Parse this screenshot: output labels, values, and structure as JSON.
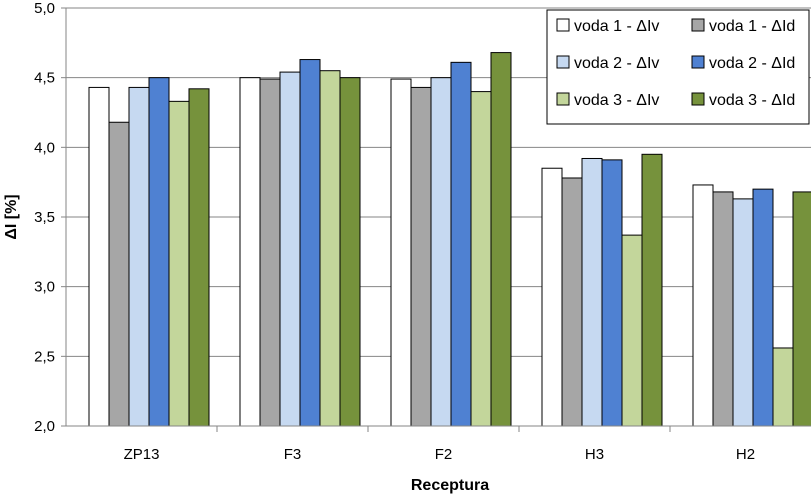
{
  "chart_data": {
    "type": "bar",
    "title": "",
    "xlabel": "Receptura",
    "ylabel": "ΔI [%]",
    "ylim": [
      2.0,
      5.0
    ],
    "yticks": [
      "2,0",
      "2,5",
      "3,0",
      "3,5",
      "4,0",
      "4,5",
      "5,0"
    ],
    "grid": true,
    "legend_position": "top-right",
    "categories": [
      "ZP13",
      "F3",
      "F2",
      "H3",
      "H2"
    ],
    "series": [
      {
        "name": "voda 1 - ΔIv",
        "color": "#ffffff",
        "values": [
          4.43,
          4.5,
          4.49,
          3.85,
          3.73
        ]
      },
      {
        "name": "voda 1 - ΔId",
        "color": "#a6a6a6",
        "values": [
          4.18,
          4.49,
          4.43,
          3.78,
          3.68
        ]
      },
      {
        "name": "voda 2 - ΔIv",
        "color": "#c6d9f1",
        "values": [
          4.43,
          4.54,
          4.5,
          3.92,
          3.63
        ]
      },
      {
        "name": "voda 2 - ΔId",
        "color": "#4f81d2",
        "values": [
          4.5,
          4.63,
          4.61,
          3.91,
          3.7
        ]
      },
      {
        "name": "voda 3 - ΔIv",
        "color": "#c3d69b",
        "values": [
          4.33,
          4.55,
          4.4,
          3.37,
          2.56
        ]
      },
      {
        "name": "voda 3 - ΔId",
        "color": "#76923c",
        "values": [
          4.42,
          4.5,
          4.68,
          3.95,
          3.68
        ]
      }
    ]
  }
}
